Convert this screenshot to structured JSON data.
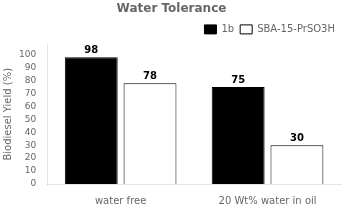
{
  "chart_data": {
    "type": "bar",
    "title": "Water Tolerance",
    "ylabel": "Biodiesel Yield (%)",
    "categories": [
      "water free",
      "20 Wt% water in oil"
    ],
    "series": [
      {
        "name": "1b",
        "color": "#000000",
        "values": [
          98,
          75
        ]
      },
      {
        "name": "SBA-15-PrSO3H",
        "color": "#ffffff",
        "values": [
          78,
          30
        ]
      }
    ],
    "ylim": [
      0,
      108
    ],
    "yticks": [
      0,
      10,
      20,
      30,
      40,
      50,
      60,
      70,
      80,
      90,
      100
    ],
    "grid": false,
    "legend": "upper right",
    "data_labels": true
  }
}
